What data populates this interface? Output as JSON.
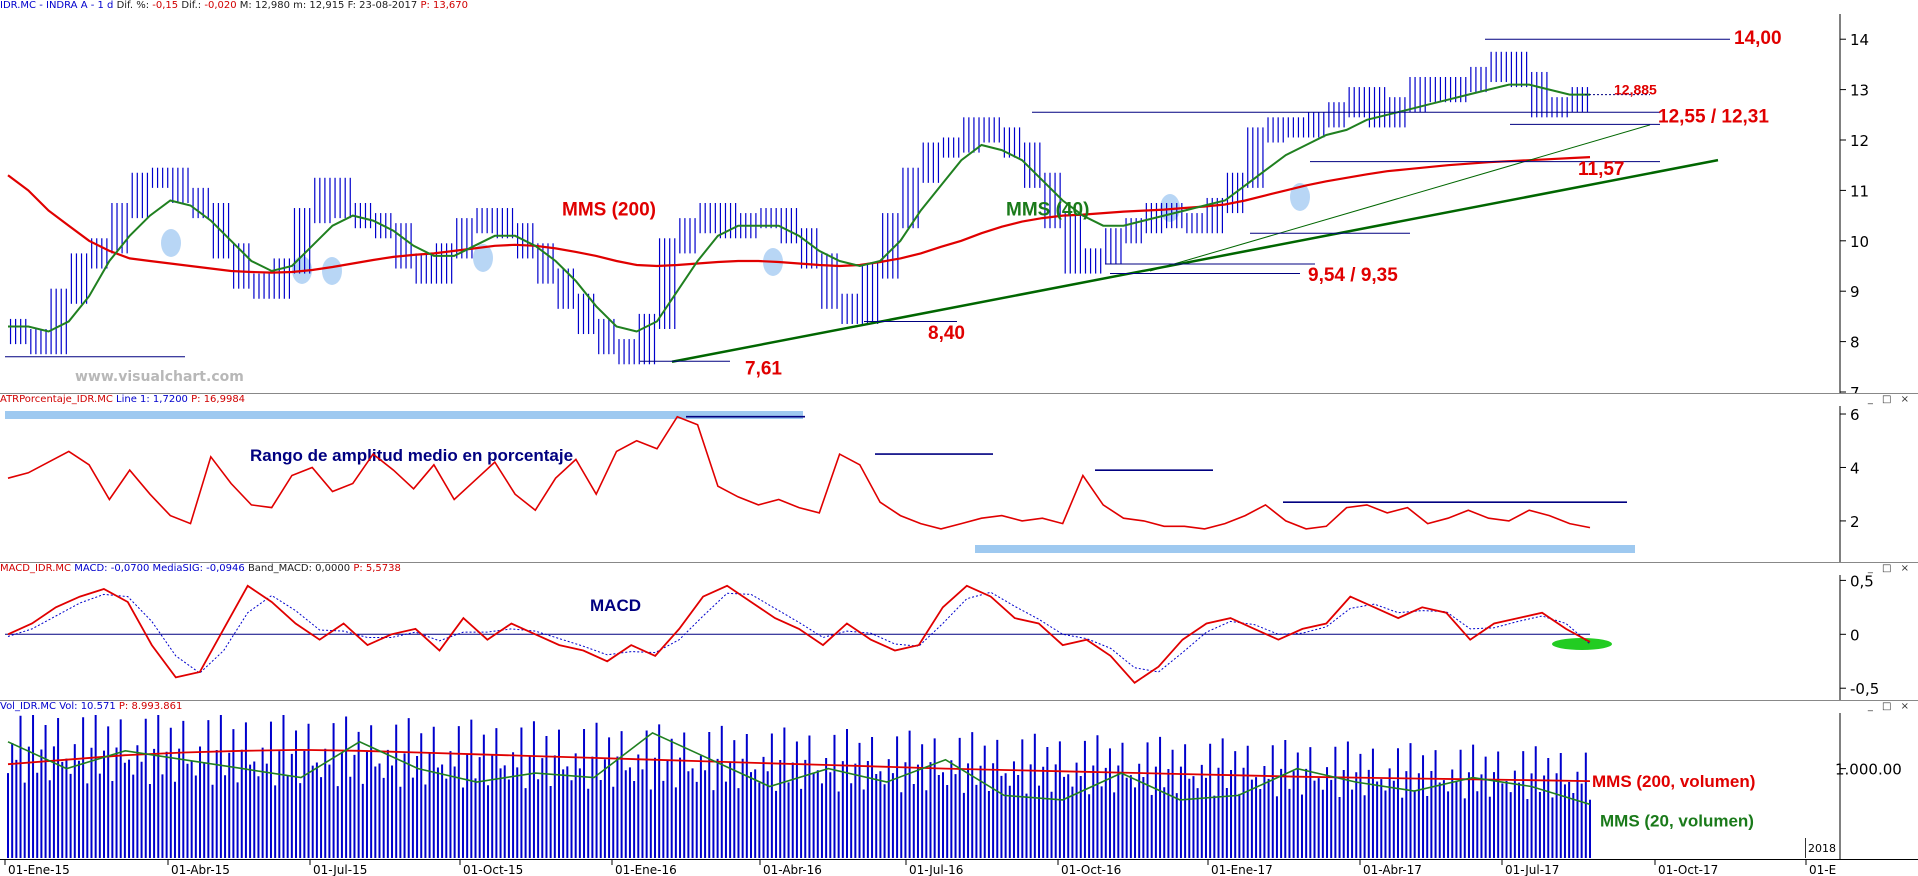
{
  "main_header": {
    "symbol": "IDR.MC - INDRA A - 1 d",
    "dif_pct_label": "Dif. %:",
    "dif_pct": "-0,15",
    "dif_label": "Dif.:",
    "dif": "-0,020",
    "max": "M: 12,980",
    "min": "m: 12,915",
    "date": "F: 23-08-2017",
    "price_label": "P:",
    "price": "13,670"
  },
  "atr_header": {
    "name": "ATRPorcentaje_IDR.MC",
    "line": "Line 1: 1,7200",
    "p": "P: 16,9984"
  },
  "macd_header": {
    "name": "MACD_IDR.MC",
    "macd": "MACD: -0,0700",
    "sig": "MediaSIG: -0,0946",
    "band": "Band_MACD: 0,0000",
    "p": "P: 5,5738"
  },
  "vol_header": {
    "name": "Vol_IDR.MC",
    "vol": "Vol: 10.571",
    "p": "P: 8.993.861"
  },
  "watermark": "www.visualchart.com",
  "window_buttons": "_ □ ×",
  "colors": {
    "price": "#0000cc",
    "mms200": "#e00000",
    "mms40": "#208020",
    "trend": "#006600",
    "annotation_red": "#e00000",
    "annotation_green": "#1a7a1a",
    "annotation_blue": "#000080",
    "band": "#9ec9f0",
    "highlight": "#88bbee"
  },
  "chart_data": [
    {
      "type": "line",
      "panel": "price",
      "y_ticks": [
        "14",
        "13",
        "12",
        "11",
        "10",
        "9",
        "8",
        "7"
      ],
      "ylim": [
        7,
        14.5
      ],
      "x_ticks": [
        "01-Ene-15",
        "01-Abr-15",
        "01-Jul-15",
        "01-Oct-15",
        "01-Ene-16",
        "01-Abr-16",
        "01-Jul-16",
        "01-Oct-16",
        "01-Ene-17",
        "01-Abr-17",
        "01-Jul-17",
        "01-Oct-17",
        "01-E"
      ],
      "series": [
        {
          "key": "price",
          "values": [
            8.3,
            8.1,
            7.9,
            8.9,
            9.6,
            9.9,
            10.6,
            11.2,
            11.3,
            10.9,
            10.6,
            9.8,
            9.2,
            9.0,
            9.5,
            10.5,
            11.1,
            10.6,
            10.4,
            10.2,
            9.6,
            9.3,
            9.8,
            10.3,
            10.5,
            10.2,
            9.8,
            9.3,
            8.8,
            8.3,
            7.9,
            7.7,
            8.4,
            9.9,
            10.3,
            10.6,
            10.2,
            10.4,
            10.5,
            10.1,
            9.6,
            8.8,
            8.5,
            9.4,
            10.4,
            11.3,
            11.8,
            11.9,
            12.3,
            12.1,
            11.8,
            11.2,
            10.4,
            9.5,
            9.7,
            10.1,
            10.3,
            10.6,
            10.4,
            10.3,
            10.7,
            11.2,
            12.1,
            12.3,
            12.2,
            12.4,
            12.6,
            12.9,
            12.4,
            12.7,
            13.1,
            12.9,
            13.1,
            13.3,
            13.6,
            13.2,
            12.6,
            12.7,
            12.9
          ]
        },
        {
          "key": "mms40",
          "name": "MMS (40)",
          "values": [
            8.3,
            8.3,
            8.2,
            8.4,
            8.9,
            9.6,
            10.1,
            10.5,
            10.8,
            10.7,
            10.4,
            10.0,
            9.6,
            9.4,
            9.5,
            9.9,
            10.3,
            10.5,
            10.4,
            10.2,
            9.9,
            9.7,
            9.7,
            9.9,
            10.1,
            10.1,
            9.9,
            9.6,
            9.2,
            8.7,
            8.3,
            8.2,
            8.4,
            9.0,
            9.6,
            10.1,
            10.3,
            10.3,
            10.3,
            10.1,
            9.8,
            9.6,
            9.5,
            9.6,
            10.0,
            10.6,
            11.1,
            11.6,
            11.9,
            11.8,
            11.6,
            11.2,
            10.8,
            10.5,
            10.3,
            10.3,
            10.4,
            10.5,
            10.6,
            10.7,
            10.8,
            11.1,
            11.4,
            11.7,
            11.9,
            12.1,
            12.2,
            12.4,
            12.5,
            12.6,
            12.7,
            12.8,
            12.9,
            13.0,
            13.1,
            13.1,
            13.0,
            12.9,
            12.9
          ]
        },
        {
          "key": "mms200",
          "name": "MMS (200)",
          "values": [
            11.3,
            11.0,
            10.6,
            10.3,
            10.0,
            9.8,
            9.65,
            9.6,
            9.55,
            9.5,
            9.45,
            9.4,
            9.38,
            9.37,
            9.38,
            9.42,
            9.48,
            9.55,
            9.62,
            9.68,
            9.72,
            9.75,
            9.8,
            9.85,
            9.9,
            9.92,
            9.9,
            9.85,
            9.78,
            9.7,
            9.6,
            9.52,
            9.5,
            9.52,
            9.55,
            9.58,
            9.6,
            9.6,
            9.58,
            9.55,
            9.52,
            9.5,
            9.52,
            9.58,
            9.65,
            9.75,
            9.88,
            10.0,
            10.15,
            10.28,
            10.38,
            10.45,
            10.5,
            10.52,
            10.55,
            10.58,
            10.6,
            10.62,
            10.65,
            10.68,
            10.72,
            10.8,
            10.9,
            11.0,
            11.1,
            11.18,
            11.25,
            11.32,
            11.38,
            11.42,
            11.46,
            11.5,
            11.53,
            11.56,
            11.58,
            11.6,
            11.62,
            11.64,
            11.66
          ]
        }
      ],
      "annotations": [
        "14,00",
        "12,885",
        "12,55 / 12,31",
        "11,57",
        "9,54 / 9,35",
        "8,40",
        "7,61",
        "MMS (200)",
        "MMS (40)"
      ]
    },
    {
      "type": "line",
      "panel": "atr",
      "y_ticks": [
        "6",
        "4",
        "2"
      ],
      "ylim": [
        0.5,
        6.3
      ],
      "series": [
        {
          "key": "atr",
          "name": "Line 1",
          "values": [
            3.6,
            3.8,
            4.2,
            4.6,
            4.1,
            2.8,
            3.9,
            3.0,
            2.2,
            1.9,
            4.4,
            3.4,
            2.6,
            2.5,
            3.7,
            4.0,
            3.1,
            3.4,
            4.5,
            3.9,
            3.2,
            4.1,
            2.8,
            3.5,
            4.2,
            3.0,
            2.4,
            3.6,
            4.3,
            3.0,
            4.6,
            5.0,
            4.7,
            5.9,
            5.6,
            3.3,
            2.9,
            2.6,
            2.8,
            2.5,
            2.3,
            4.5,
            4.1,
            2.7,
            2.2,
            1.9,
            1.7,
            1.9,
            2.1,
            2.2,
            2.0,
            2.1,
            1.9,
            3.7,
            2.6,
            2.1,
            2.0,
            1.8,
            1.8,
            1.7,
            1.9,
            2.2,
            2.6,
            2.0,
            1.7,
            1.8,
            2.5,
            2.6,
            2.3,
            2.5,
            1.9,
            2.1,
            2.4,
            2.1,
            2.0,
            2.4,
            2.2,
            1.9,
            1.75
          ]
        }
      ],
      "annotations": [
        "Rango de amplitud medio en porcentaje"
      ]
    },
    {
      "type": "line",
      "panel": "macd",
      "y_ticks": [
        "0,5",
        "0",
        "-0,5"
      ],
      "ylim": [
        -0.6,
        0.55
      ],
      "series": [
        {
          "key": "macd",
          "name": "MACD",
          "values": [
            0.0,
            0.1,
            0.25,
            0.35,
            0.42,
            0.3,
            -0.1,
            -0.4,
            -0.35,
            0.05,
            0.45,
            0.3,
            0.1,
            -0.05,
            0.1,
            -0.1,
            0.0,
            0.05,
            -0.15,
            0.15,
            -0.05,
            0.1,
            0.0,
            -0.1,
            -0.15,
            -0.25,
            -0.1,
            -0.2,
            0.05,
            0.35,
            0.45,
            0.3,
            0.15,
            0.05,
            -0.1,
            0.1,
            -0.05,
            -0.15,
            -0.1,
            0.25,
            0.45,
            0.35,
            0.15,
            0.1,
            -0.1,
            -0.05,
            -0.2,
            -0.45,
            -0.3,
            -0.05,
            0.1,
            0.15,
            0.05,
            -0.05,
            0.05,
            0.1,
            0.35,
            0.25,
            0.15,
            0.25,
            0.2,
            -0.05,
            0.1,
            0.15,
            0.2,
            0.05,
            -0.07
          ]
        },
        {
          "key": "sig",
          "name": "MediaSIG",
          "values": [
            -0.02,
            0.05,
            0.17,
            0.29,
            0.37,
            0.35,
            0.12,
            -0.2,
            -0.36,
            -0.15,
            0.2,
            0.36,
            0.22,
            0.04,
            0.03,
            -0.03,
            -0.03,
            0.02,
            -0.06,
            0.02,
            0.02,
            0.05,
            0.03,
            -0.04,
            -0.11,
            -0.19,
            -0.16,
            -0.17,
            -0.05,
            0.17,
            0.38,
            0.37,
            0.24,
            0.11,
            -0.03,
            0.03,
            0.01,
            -0.09,
            -0.11,
            0.1,
            0.33,
            0.39,
            0.26,
            0.14,
            0.0,
            -0.04,
            -0.13,
            -0.31,
            -0.35,
            -0.17,
            0.02,
            0.12,
            0.09,
            0.0,
            0.01,
            0.07,
            0.24,
            0.28,
            0.2,
            0.22,
            0.21,
            0.05,
            0.06,
            0.12,
            0.17,
            0.1,
            -0.09
          ]
        }
      ],
      "annotations": [
        "MACD"
      ]
    },
    {
      "type": "bar",
      "panel": "volume",
      "y_ticks": [
        "1.000.00"
      ],
      "ylim": [
        0,
        1600000
      ],
      "series": [
        {
          "key": "mms200v",
          "name": "MMS (200, volumen)",
          "values": [
            1050000,
            1100000,
            1150000,
            1180000,
            1200000,
            1210000,
            1200000,
            1180000,
            1160000,
            1140000,
            1120000,
            1100000,
            1080000,
            1060000,
            1040000,
            1020000,
            1000000,
            985000,
            970000,
            955000,
            940000,
            925000,
            910000,
            900000,
            890000,
            880000,
            870000,
            860000
          ]
        },
        {
          "key": "mms20v",
          "name": "MMS (20, volumen)",
          "values": [
            1300000,
            1000000,
            1200000,
            1100000,
            1000000,
            900000,
            1300000,
            1000000,
            850000,
            950000,
            900000,
            1400000,
            1100000,
            800000,
            1000000,
            850000,
            1100000,
            700000,
            650000,
            950000,
            650000,
            700000,
            1000000,
            850000,
            750000,
            900000,
            800000,
            600000
          ]
        }
      ],
      "annotations": [
        "MMS (200, volumen)",
        "MMS (20, volumen)",
        "2018"
      ]
    }
  ]
}
